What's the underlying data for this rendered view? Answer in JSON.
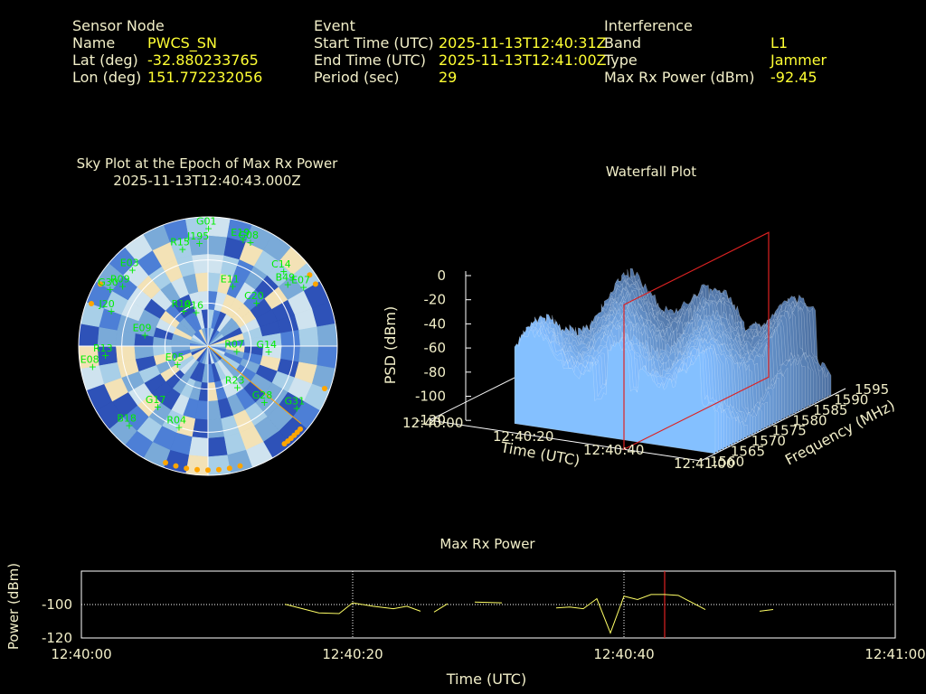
{
  "header": {
    "sensor_node": {
      "heading": "Sensor Node",
      "rows": [
        {
          "label": "Name",
          "value": "PWCS_SN"
        },
        {
          "label": "Lat (deg)",
          "value": "-32.880233765"
        },
        {
          "label": "Lon (deg)",
          "value": "151.772232056"
        }
      ]
    },
    "event": {
      "heading": "Event",
      "rows": [
        {
          "label": "Start Time (UTC)",
          "value": "2025-11-13T12:40:31Z"
        },
        {
          "label": "End Time (UTC)",
          "value": "2025-11-13T12:41:00Z"
        },
        {
          "label": "Period (sec)",
          "value": "29"
        }
      ]
    },
    "interference": {
      "heading": "Interference",
      "rows": [
        {
          "label": "Band",
          "value": "L1"
        },
        {
          "label": "Type",
          "value": "Jammer"
        },
        {
          "label": "Max Rx Power (dBm)",
          "value": "-92.45"
        }
      ]
    }
  },
  "colors": {
    "label": "#f2efc9",
    "value": "#ffff33",
    "satellite": "#00ee00",
    "marker": "#ffa500",
    "line": "#ffff66",
    "cursor": "#dd2222"
  },
  "chart_data": [
    {
      "type": "scatter",
      "title": "Sky Plot at the Epoch of Max Rx Power",
      "subtitle": "2025-11-13T12:40:43.000Z",
      "satellites": [
        {
          "id": "G01",
          "az": 0,
          "el": 82
        },
        {
          "id": "R15",
          "az": 345,
          "el": 70
        },
        {
          "id": "J195",
          "az": 355,
          "el": 72
        },
        {
          "id": "E19",
          "az": 18,
          "el": 78
        },
        {
          "id": "G08",
          "az": 22,
          "el": 78
        },
        {
          "id": "E03",
          "az": 315,
          "el": 75
        },
        {
          "id": "G30",
          "az": 300,
          "el": 79
        },
        {
          "id": "R09",
          "az": 305,
          "el": 73
        },
        {
          "id": "C14",
          "az": 45,
          "el": 74
        },
        {
          "id": "B49",
          "az": 52,
          "el": 70
        },
        {
          "id": "E07",
          "az": 58,
          "el": 78
        },
        {
          "id": "E11",
          "az": 22,
          "el": 45
        },
        {
          "id": "C20",
          "az": 48,
          "el": 45
        },
        {
          "id": "J20",
          "az": 290,
          "el": 72
        },
        {
          "id": "R10",
          "az": 325,
          "el": 30
        },
        {
          "id": "R13",
          "az": 265,
          "el": 72
        },
        {
          "id": "E09",
          "az": 280,
          "el": 45
        },
        {
          "id": "R16",
          "az": 340,
          "el": 25
        },
        {
          "id": "G14",
          "az": 95,
          "el": 42
        },
        {
          "id": "R07",
          "az": 100,
          "el": 20
        },
        {
          "id": "G17",
          "az": 220,
          "el": 55
        },
        {
          "id": "E05",
          "az": 240,
          "el": 25
        },
        {
          "id": "R04",
          "az": 200,
          "el": 60
        },
        {
          "id": "E08",
          "az": 260,
          "el": 82
        },
        {
          "id": "G28",
          "az": 135,
          "el": 55
        },
        {
          "id": "G31",
          "az": 125,
          "el": 75
        },
        {
          "id": "R23",
          "az": 145,
          "el": 35
        },
        {
          "id": "B18",
          "az": 225,
          "el": 78
        }
      ],
      "markers_az": [
        165,
        170,
        175,
        180,
        185,
        190,
        195,
        200,
        140,
        142,
        138,
        136,
        134,
        132,
        110,
        55,
        60,
        300,
        290
      ],
      "colormap": [
        "#2e52b8",
        "#4d7fd6",
        "#7aaad8",
        "#a8cfe8",
        "#cfe3ef",
        "#f3e2b6"
      ]
    },
    {
      "type": "area",
      "title": "Waterfall Plot",
      "xlabel": "Time (UTC)",
      "ylabel": "Frequency (MHz)",
      "zlabel": "PSD (dBm)",
      "x_ticks": [
        "12:40:00",
        "12:40:20",
        "12:40:40",
        "12:41:00"
      ],
      "y_ticks": [
        "1560",
        "1565",
        "1570",
        "1575",
        "1580",
        "1585",
        "1590",
        "1595"
      ],
      "z_ticks": [
        "0",
        "-20",
        "-40",
        "-60",
        "-80",
        "-100",
        "-120"
      ],
      "zlim": [
        -120,
        0
      ],
      "ylim": [
        1560,
        1595
      ],
      "cursor_time": "12:40:43"
    },
    {
      "type": "line",
      "title": "Max Rx Power",
      "xlabel": "Time (UTC)",
      "ylabel": "Power (dBm)",
      "x_ticks": [
        "12:40:00",
        "12:40:20",
        "12:40:40",
        "12:41:00"
      ],
      "y_ticks": [
        "-100",
        "-120"
      ],
      "ylim": [
        -120,
        -80
      ],
      "xlim_sec": [
        0,
        60
      ],
      "cursor_sec": 43,
      "segments": [
        [
          [
            15,
            -99.8
          ],
          [
            17.5,
            -105
          ],
          [
            19,
            -105.4
          ],
          [
            20,
            -99
          ],
          [
            21.5,
            -101
          ],
          [
            23,
            -102.5
          ],
          [
            24,
            -101
          ],
          [
            25,
            -104
          ]
        ],
        [
          [
            26,
            -104.5
          ],
          [
            27,
            -99.5
          ]
        ],
        [
          [
            29,
            -98.5
          ],
          [
            31,
            -99
          ]
        ],
        [
          [
            35,
            -102
          ],
          [
            36,
            -101.5
          ],
          [
            37,
            -102.5
          ],
          [
            38,
            -96.5
          ],
          [
            39,
            -117
          ],
          [
            40,
            -95
          ],
          [
            41,
            -97
          ],
          [
            42,
            -94
          ],
          [
            43,
            -94
          ],
          [
            44,
            -94.5
          ],
          [
            46,
            -103
          ]
        ],
        [
          [
            50,
            -104
          ],
          [
            51,
            -103
          ]
        ]
      ]
    }
  ]
}
